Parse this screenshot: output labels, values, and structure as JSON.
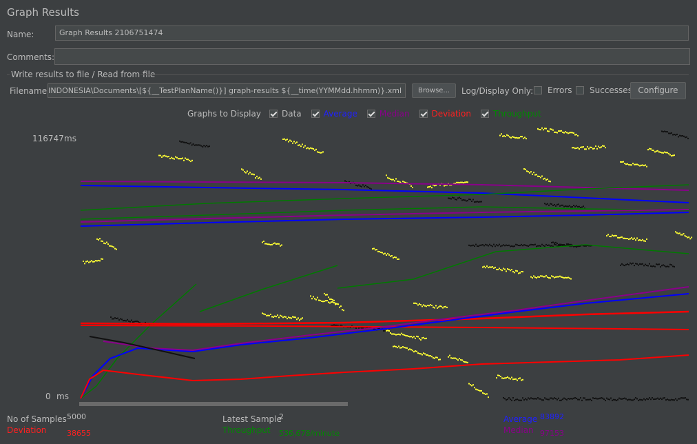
{
  "panel": {
    "title": "Graph Results",
    "name_label": "Name:",
    "name_value": "Graph Results 2106751474",
    "comments_label": "Comments:",
    "comments_value": "",
    "write_results_label": "Write results to file / Read from file",
    "filename_label": "Filename",
    "filename_value": "TAS INDONESIA\\Documents\\[${__TestPlanName()}] graph-results ${__time(YYMMdd.hhmm)}.xml",
    "browse_label": "Browse...",
    "log_display_label": "Log/Display Only:",
    "errors_label": "Errors",
    "errors_checked": false,
    "successes_label": "Successes",
    "successes_checked": false,
    "configure_label": "Configure"
  },
  "graphs_to_display": {
    "label": "Graphs to Display",
    "items": [
      {
        "label": "Data",
        "checked": true,
        "color": "#bbbbbb"
      },
      {
        "label": "Average",
        "checked": true,
        "color": "#0000ff"
      },
      {
        "label": "Median",
        "checked": true,
        "color": "#8a008a"
      },
      {
        "label": "Deviation",
        "checked": true,
        "color": "#ff0000"
      },
      {
        "label": "Throughput",
        "checked": true,
        "color": "#007a00"
      }
    ]
  },
  "chart_data": {
    "type": "scatter",
    "y_max_label": "116747",
    "y_min_label": "0",
    "y_unit": "ms",
    "ylim": [
      0,
      116747
    ],
    "series_colors": {
      "data_high": "#ffff33",
      "data_low": "#000000",
      "average": "#0000ff",
      "median": "#8a008a",
      "deviation": "#ff0000",
      "throughput": "#007a00"
    }
  },
  "stats": {
    "samples_label": "No of Samples",
    "samples_value": "5000",
    "latest_label": "Latest Sample",
    "latest_value": "2",
    "average_label": "Average",
    "average_value": "83892",
    "deviation_label": "Deviation",
    "deviation_value": "38655",
    "throughput_label": "Throughput",
    "throughput_value": "536,678/minute",
    "median_label": "Median",
    "median_value": "97153"
  }
}
